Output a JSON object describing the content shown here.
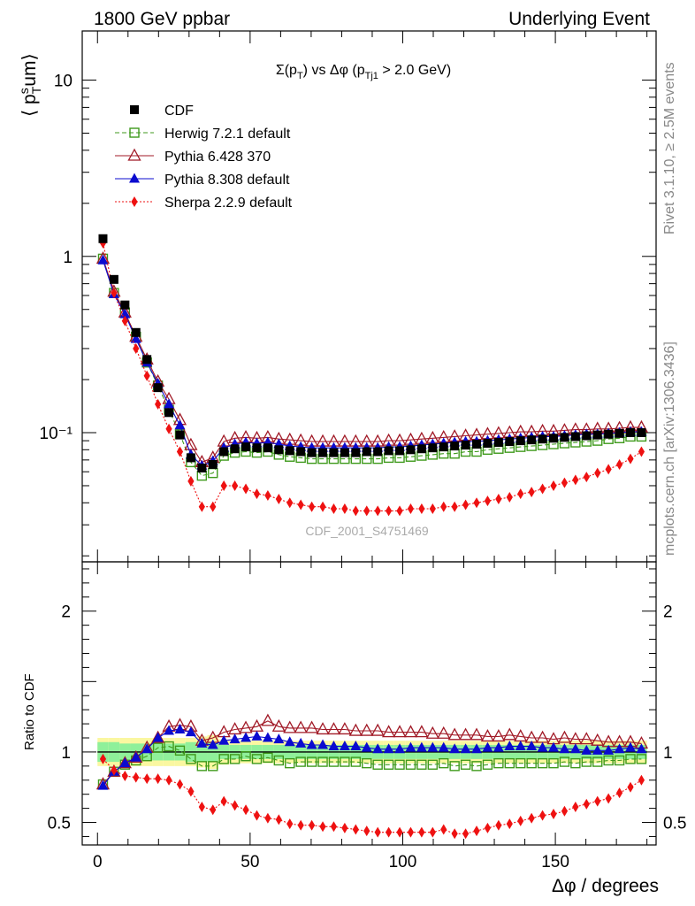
{
  "header": {
    "left": "1800 GeV ppbar",
    "right": "Underlying Event"
  },
  "side_text": {
    "rivet": "Rivet 3.1.10, ≥ 2.5M events",
    "mcplots": "mcplots.cern.ch [arXiv:1306.3436]"
  },
  "watermark": "CDF_2001_S4751469",
  "chart_data": {
    "type": "scatter",
    "title": "Σ(p_T) vs Δφ (p_Tj1 > 2.0 GeV)",
    "title_parts": {
      "main": "Σ(p",
      "sub1": "T",
      "mid": ") vs Δφ (p",
      "sub2": "Tj1",
      "end": " > 2.0 GeV)"
    },
    "xlabel": "Δφ / degrees",
    "ylabel_top": "⟨ p_T^s um⟩",
    "ylabel_parts": {
      "open": "⟨ p",
      "sup": "s",
      "sub": "T",
      "tail": "um⟩"
    },
    "ylabel_bottom": "Ratio to CDF",
    "xlim": [
      -5,
      183
    ],
    "ylim_top": [
      0.0185,
      19
    ],
    "yscale_top": "log",
    "ylim_bottom": [
      0.34,
      2.35
    ],
    "x_ticks": [
      "0",
      "50",
      "100",
      "150"
    ],
    "y_ticks_top": [
      "10⁻¹",
      "1",
      "10"
    ],
    "y_ticks_bottom": [
      "0.5",
      "1",
      "2"
    ],
    "legend_position": "top-left",
    "x": [
      1.8,
      5.4,
      9.0,
      12.6,
      16.2,
      19.8,
      23.4,
      27.0,
      30.6,
      34.2,
      37.8,
      41.4,
      45.0,
      48.6,
      52.2,
      55.8,
      59.4,
      63.0,
      66.6,
      70.2,
      73.8,
      77.4,
      81.0,
      84.6,
      88.2,
      91.8,
      95.4,
      99.0,
      102.6,
      106.2,
      109.8,
      113.4,
      117.0,
      120.6,
      124.2,
      127.8,
      131.4,
      135.0,
      138.6,
      142.2,
      145.8,
      149.4,
      153.0,
      156.6,
      160.2,
      163.8,
      167.4,
      171.0,
      174.6,
      178.2
    ],
    "series": [
      {
        "name": "CDF",
        "style": "cdf",
        "color": "#000000",
        "values": [
          1.26,
          0.74,
          0.53,
          0.37,
          0.26,
          0.18,
          0.13,
          0.097,
          0.072,
          0.063,
          0.066,
          0.078,
          0.081,
          0.083,
          0.082,
          0.082,
          0.08,
          0.079,
          0.078,
          0.077,
          0.077,
          0.077,
          0.077,
          0.077,
          0.078,
          0.078,
          0.079,
          0.079,
          0.08,
          0.081,
          0.082,
          0.083,
          0.084,
          0.085,
          0.086,
          0.087,
          0.088,
          0.089,
          0.09,
          0.091,
          0.092,
          0.093,
          0.094,
          0.095,
          0.096,
          0.097,
          0.098,
          0.099,
          0.1,
          0.1
        ],
        "ratio": [
          1.0,
          1.0,
          1.0,
          1.0,
          1.0,
          1.0,
          1.0,
          1.0,
          1.0,
          1.0,
          1.0,
          1.0,
          1.0,
          1.0,
          1.0,
          1.0,
          1.0,
          1.0,
          1.0,
          1.0,
          1.0,
          1.0,
          1.0,
          1.0,
          1.0,
          1.0,
          1.0,
          1.0,
          1.0,
          1.0,
          1.0,
          1.0,
          1.0,
          1.0,
          1.0,
          1.0,
          1.0,
          1.0,
          1.0,
          1.0,
          1.0,
          1.0,
          1.0,
          1.0,
          1.0,
          1.0,
          1.0,
          1.0,
          1.0,
          1.0
        ]
      },
      {
        "name": "Herwig 7.2.1 default",
        "style": "herwig",
        "color": "#3f9a1c",
        "values": [
          0.97,
          0.62,
          0.48,
          0.35,
          0.25,
          0.185,
          0.135,
          0.098,
          0.068,
          0.057,
          0.059,
          0.074,
          0.077,
          0.078,
          0.077,
          0.078,
          0.075,
          0.073,
          0.072,
          0.071,
          0.071,
          0.071,
          0.071,
          0.071,
          0.071,
          0.071,
          0.072,
          0.072,
          0.073,
          0.074,
          0.075,
          0.076,
          0.076,
          0.078,
          0.078,
          0.08,
          0.081,
          0.082,
          0.083,
          0.084,
          0.085,
          0.086,
          0.087,
          0.088,
          0.089,
          0.09,
          0.092,
          0.093,
          0.095,
          0.095
        ],
        "ratio": [
          0.77,
          0.86,
          0.91,
          0.94,
          0.97,
          1.03,
          1.04,
          1.01,
          0.95,
          0.9,
          0.9,
          0.95,
          0.95,
          0.97,
          0.95,
          0.96,
          0.94,
          0.92,
          0.93,
          0.93,
          0.93,
          0.93,
          0.93,
          0.93,
          0.92,
          0.91,
          0.91,
          0.91,
          0.91,
          0.91,
          0.91,
          0.92,
          0.9,
          0.91,
          0.9,
          0.91,
          0.92,
          0.92,
          0.92,
          0.92,
          0.92,
          0.92,
          0.93,
          0.92,
          0.93,
          0.93,
          0.94,
          0.94,
          0.95,
          0.95
        ]
      },
      {
        "name": "Pythia 6.428 370",
        "style": "pythia6",
        "color": "#a11a27",
        "values": [
          0.97,
          0.63,
          0.48,
          0.35,
          0.26,
          0.195,
          0.155,
          0.118,
          0.085,
          0.068,
          0.072,
          0.089,
          0.093,
          0.094,
          0.093,
          0.094,
          0.092,
          0.091,
          0.09,
          0.089,
          0.089,
          0.089,
          0.089,
          0.089,
          0.089,
          0.089,
          0.09,
          0.09,
          0.091,
          0.092,
          0.093,
          0.094,
          0.095,
          0.096,
          0.097,
          0.098,
          0.099,
          0.1,
          0.101,
          0.101,
          0.102,
          0.102,
          0.103,
          0.104,
          0.104,
          0.105,
          0.105,
          0.106,
          0.107,
          0.107
        ],
        "ratio": [
          0.77,
          0.86,
          0.92,
          0.96,
          1.03,
          1.1,
          1.18,
          1.19,
          1.18,
          1.08,
          1.1,
          1.14,
          1.16,
          1.17,
          1.18,
          1.22,
          1.18,
          1.17,
          1.17,
          1.17,
          1.16,
          1.16,
          1.16,
          1.15,
          1.15,
          1.15,
          1.14,
          1.14,
          1.14,
          1.14,
          1.13,
          1.13,
          1.12,
          1.12,
          1.12,
          1.11,
          1.11,
          1.12,
          1.11,
          1.1,
          1.1,
          1.09,
          1.1,
          1.09,
          1.09,
          1.08,
          1.07,
          1.07,
          1.07,
          1.06
        ]
      },
      {
        "name": "Pythia 8.308 default",
        "style": "pythia8",
        "color": "#0b0bcf",
        "values": [
          0.95,
          0.61,
          0.47,
          0.34,
          0.25,
          0.19,
          0.145,
          0.11,
          0.075,
          0.065,
          0.069,
          0.082,
          0.086,
          0.088,
          0.087,
          0.088,
          0.086,
          0.084,
          0.083,
          0.082,
          0.082,
          0.082,
          0.082,
          0.082,
          0.082,
          0.082,
          0.083,
          0.083,
          0.084,
          0.085,
          0.086,
          0.087,
          0.088,
          0.089,
          0.089,
          0.09,
          0.091,
          0.092,
          0.093,
          0.094,
          0.095,
          0.095,
          0.096,
          0.097,
          0.098,
          0.098,
          0.099,
          0.1,
          0.101,
          0.101
        ],
        "ratio": [
          0.76,
          0.86,
          0.92,
          0.96,
          1.02,
          1.1,
          1.15,
          1.16,
          1.14,
          1.06,
          1.05,
          1.08,
          1.09,
          1.1,
          1.11,
          1.1,
          1.09,
          1.07,
          1.06,
          1.05,
          1.05,
          1.04,
          1.04,
          1.04,
          1.03,
          1.02,
          1.02,
          1.02,
          1.03,
          1.03,
          1.03,
          1.03,
          1.02,
          1.02,
          1.02,
          1.03,
          1.03,
          1.04,
          1.04,
          1.04,
          1.03,
          1.03,
          1.02,
          1.02,
          1.01,
          1.01,
          1.01,
          1.02,
          1.03,
          1.02
        ]
      },
      {
        "name": "Sherpa 2.2.9 default",
        "style": "sherpa",
        "color": "#ee1111",
        "values": [
          1.19,
          0.62,
          0.43,
          0.3,
          0.21,
          0.145,
          0.105,
          0.078,
          0.053,
          0.038,
          0.038,
          0.05,
          0.05,
          0.048,
          0.045,
          0.044,
          0.042,
          0.04,
          0.039,
          0.038,
          0.038,
          0.037,
          0.037,
          0.036,
          0.036,
          0.036,
          0.036,
          0.036,
          0.037,
          0.037,
          0.037,
          0.038,
          0.038,
          0.039,
          0.04,
          0.041,
          0.042,
          0.043,
          0.045,
          0.046,
          0.048,
          0.05,
          0.052,
          0.054,
          0.056,
          0.059,
          0.062,
          0.066,
          0.071,
          0.078
        ],
        "ratio": [
          0.95,
          0.87,
          0.83,
          0.82,
          0.81,
          0.81,
          0.8,
          0.77,
          0.72,
          0.61,
          0.59,
          0.65,
          0.62,
          0.59,
          0.55,
          0.53,
          0.52,
          0.49,
          0.48,
          0.48,
          0.47,
          0.47,
          0.46,
          0.45,
          0.44,
          0.43,
          0.43,
          0.43,
          0.43,
          0.43,
          0.43,
          0.45,
          0.42,
          0.42,
          0.44,
          0.46,
          0.48,
          0.49,
          0.51,
          0.53,
          0.55,
          0.56,
          0.58,
          0.61,
          0.63,
          0.65,
          0.67,
          0.71,
          0.75,
          0.8
        ]
      }
    ],
    "ratio_band": {
      "inner": [
        0.07,
        0.07,
        0.06,
        0.06,
        0.06,
        0.06,
        0.06,
        0.06,
        0.07,
        0.07,
        0.07,
        0.05,
        0.05,
        0.05,
        0.05,
        0.05,
        0.05,
        0.05,
        0.05,
        0.05,
        0.05,
        0.05,
        0.05,
        0.05,
        0.05,
        0.05,
        0.05,
        0.05,
        0.05,
        0.05,
        0.05,
        0.05,
        0.05,
        0.05,
        0.05,
        0.05,
        0.05,
        0.05,
        0.05,
        0.05,
        0.05,
        0.05,
        0.05,
        0.05,
        0.05,
        0.05,
        0.05,
        0.05,
        0.05,
        0.05
      ],
      "outer": [
        0.1,
        0.1,
        0.1,
        0.1,
        0.1,
        0.1,
        0.1,
        0.1,
        0.1,
        0.11,
        0.12,
        0.09,
        0.08,
        0.08,
        0.08,
        0.08,
        0.08,
        0.08,
        0.08,
        0.08,
        0.08,
        0.08,
        0.08,
        0.08,
        0.08,
        0.08,
        0.08,
        0.08,
        0.08,
        0.08,
        0.08,
        0.08,
        0.08,
        0.08,
        0.08,
        0.08,
        0.08,
        0.08,
        0.08,
        0.08,
        0.08,
        0.08,
        0.08,
        0.08,
        0.08,
        0.08,
        0.08,
        0.08,
        0.08,
        0.08
      ],
      "inner_color": "#8ff09a",
      "outer_color": "#faf7a0"
    }
  }
}
